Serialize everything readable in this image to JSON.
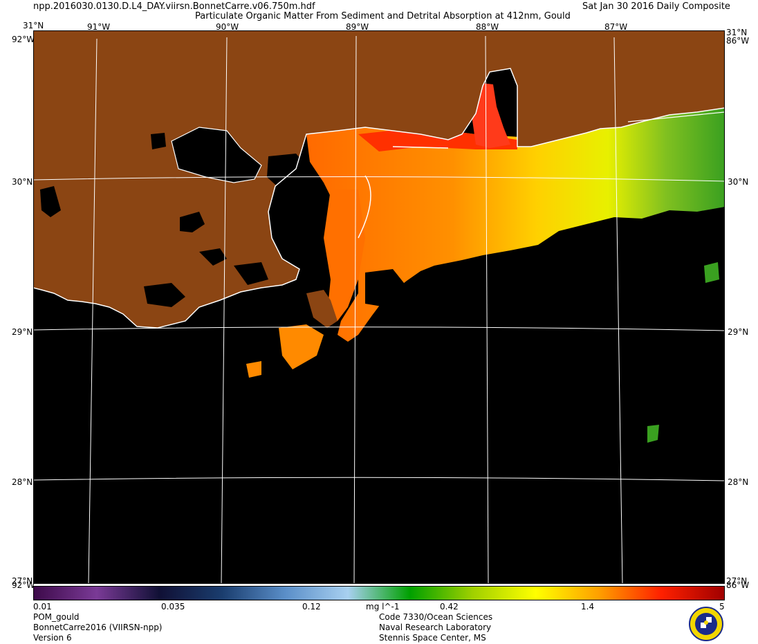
{
  "header": {
    "filename": "npp.2016030.0130.D.L4_DAY.viirsn.BonnetCarre.v06.750m.hdf",
    "product_title": "Particulate Organic Matter From Sediment and Detrital Absorption at 412nm, Gould",
    "date_label": "Sat Jan 30 2016 Daily Composite"
  },
  "map": {
    "longitude_labels": [
      "91°W",
      "90°W",
      "89°W",
      "88°W",
      "87°W"
    ],
    "latitude_labels": [
      "30°N",
      "29°N",
      "28°N"
    ],
    "corner_labels": {
      "top_left_lat": "31°N",
      "top_right_lat": "31°N",
      "left_lon_top": "92°W",
      "right_lon_top": "86°W",
      "bottom_left_lat": "27°N",
      "bottom_left_lon": "92°W",
      "bottom_right_lat": "27°N",
      "bottom_right_lon": "86°W"
    },
    "colors": {
      "land": "#8b4513",
      "no_data": "#000000",
      "coastline": "#ffffff",
      "graticule": "#ffffff"
    }
  },
  "colorbar": {
    "tick_labels": [
      "0.01",
      "0.035",
      "0.12",
      "0.42",
      "1.4",
      "5"
    ],
    "unit": "mg l^-1",
    "min": 0.01,
    "max": 5,
    "scale": "log",
    "stops": [
      "#3d0a4a",
      "#7a3a96",
      "#101035",
      "#1a3d6e",
      "#5a8ec8",
      "#a8d0f0",
      "#00a000",
      "#a0d000",
      "#ffff00",
      "#ffa000",
      "#ff2000",
      "#a00000"
    ]
  },
  "footer": {
    "product_name": "POM_gould",
    "project": "BonnetCarre2016 (VIIRSN-npp)",
    "version": "Version 6",
    "org_line1": "Code 7330/Ocean Sciences",
    "org_line2": "Naval Research Laboratory",
    "org_line3": "Stennis Space Center, MS",
    "logo": "nrl-seal-icon"
  }
}
